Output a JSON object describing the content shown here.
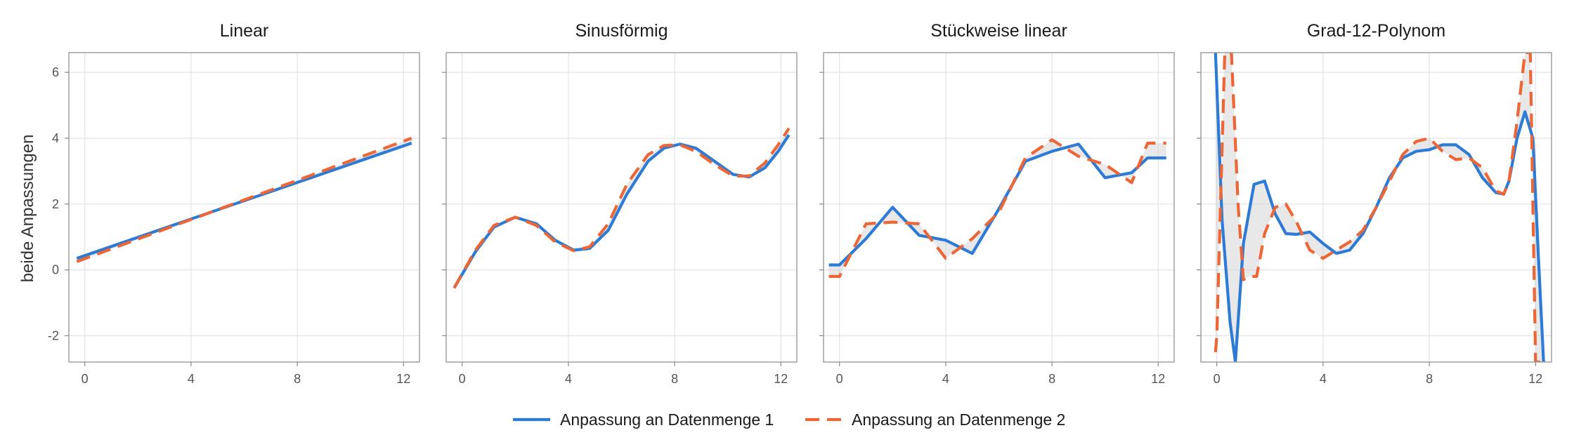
{
  "chart_data": {
    "type": "line",
    "ylabel": "beide Anpassungen",
    "xlim": [
      -0.6,
      12.6
    ],
    "ylim": [
      -2.8,
      6.6
    ],
    "x_ticks": [
      0,
      4,
      8,
      12
    ],
    "y_ticks": [
      -2,
      0,
      2,
      4,
      6
    ],
    "grid": true,
    "legend_position": "bottom",
    "series_styles": [
      {
        "name": "Anpassung an Datenmenge 1",
        "color": "#2d7bd5",
        "dash": "solid"
      },
      {
        "name": "Anpassung an Datenmenge 2",
        "color": "#ec6636",
        "dash": "dashed"
      }
    ],
    "band_color": "#cccccc",
    "panels": [
      {
        "title": "Linear",
        "series": [
          {
            "name": "Anpassung an Datenmenge 1",
            "x": [
              -0.3,
              12.3
            ],
            "y": [
              0.35,
              3.85
            ]
          },
          {
            "name": "Anpassung an Datenmenge 2",
            "x": [
              -0.3,
              12.3
            ],
            "y": [
              0.25,
              4.0
            ]
          }
        ]
      },
      {
        "title": "Sinusförmig",
        "series": [
          {
            "name": "Anpassung an Datenmenge 1",
            "x": [
              -0.3,
              0.5,
              1.2,
              2.0,
              2.8,
              3.5,
              4.2,
              4.8,
              5.5,
              6.2,
              7.0,
              7.6,
              8.2,
              8.8,
              9.5,
              10.2,
              10.8,
              11.4,
              11.9,
              12.3
            ],
            "y": [
              -0.55,
              0.55,
              1.3,
              1.6,
              1.4,
              0.9,
              0.6,
              0.65,
              1.2,
              2.3,
              3.3,
              3.7,
              3.82,
              3.7,
              3.3,
              2.9,
              2.82,
              3.1,
              3.6,
              4.1
            ]
          },
          {
            "name": "Anpassung an Datenmenge 2",
            "x": [
              -0.3,
              0.5,
              1.2,
              2.0,
              2.8,
              3.5,
              4.2,
              4.8,
              5.5,
              6.2,
              7.0,
              7.6,
              8.2,
              8.8,
              9.5,
              10.2,
              10.8,
              11.4,
              11.9,
              12.3
            ],
            "y": [
              -0.55,
              0.6,
              1.35,
              1.6,
              1.35,
              0.85,
              0.58,
              0.7,
              1.4,
              2.6,
              3.5,
              3.78,
              3.8,
              3.6,
              3.2,
              2.85,
              2.85,
              3.25,
              3.8,
              4.3
            ]
          }
        ]
      },
      {
        "title": "Stückweise linear",
        "series": [
          {
            "name": "Anpassung an Datenmenge 1",
            "x": [
              -0.4,
              0.0,
              1.0,
              2.0,
              3.0,
              4.0,
              5.0,
              6.0,
              7.0,
              8.0,
              9.0,
              10.0,
              11.0,
              11.6,
              12.3
            ],
            "y": [
              0.15,
              0.15,
              0.95,
              1.9,
              1.05,
              0.9,
              0.5,
              1.85,
              3.3,
              3.6,
              3.82,
              2.8,
              2.95,
              3.4,
              3.4
            ]
          },
          {
            "name": "Anpassung an Datenmenge 2",
            "x": [
              -0.4,
              0.0,
              1.0,
              2.0,
              3.0,
              4.0,
              5.0,
              6.0,
              7.0,
              8.0,
              9.0,
              10.0,
              11.0,
              11.6,
              12.3
            ],
            "y": [
              -0.2,
              -0.2,
              1.4,
              1.45,
              1.4,
              0.35,
              0.95,
              1.75,
              3.4,
              3.95,
              3.45,
              3.2,
              2.65,
              3.85,
              3.85
            ]
          }
        ]
      },
      {
        "title": "Grad-12-Polynom",
        "series": [
          {
            "name": "Anpassung an Datenmenge 1",
            "x": [
              -0.05,
              0.2,
              0.5,
              0.7,
              1.0,
              1.4,
              1.8,
              2.2,
              2.6,
              3.0,
              3.5,
              4.0,
              4.5,
              5.0,
              5.5,
              6.0,
              6.5,
              7.0,
              7.5,
              8.0,
              8.5,
              9.0,
              9.5,
              10.0,
              10.5,
              10.8,
              11.0,
              11.3,
              11.6,
              11.9,
              12.1,
              12.3,
              12.35
            ],
            "y": [
              6.6,
              1.5,
              -1.6,
              -2.8,
              0.8,
              2.6,
              2.7,
              1.7,
              1.1,
              1.08,
              1.15,
              0.8,
              0.5,
              0.6,
              1.1,
              1.9,
              2.8,
              3.4,
              3.6,
              3.65,
              3.8,
              3.8,
              3.5,
              2.8,
              2.35,
              2.3,
              2.7,
              4.0,
              4.8,
              4.0,
              0.5,
              -2.8,
              -2.8
            ]
          },
          {
            "name": "Anpassung an Datenmenge 2",
            "x": [
              -0.05,
              0.0,
              0.3,
              0.55,
              0.8,
              1.0,
              1.2,
              1.5,
              1.8,
              2.2,
              2.6,
              3.0,
              3.5,
              4.0,
              4.5,
              5.0,
              5.5,
              6.0,
              6.5,
              7.0,
              7.5,
              8.0,
              8.5,
              9.0,
              9.5,
              10.0,
              10.5,
              10.8,
              11.0,
              11.3,
              11.6,
              11.8,
              12.0,
              12.2
            ],
            "y": [
              -2.5,
              -2.0,
              6.6,
              6.6,
              2.0,
              -0.3,
              -0.2,
              -0.2,
              1.1,
              1.9,
              2.0,
              1.45,
              0.6,
              0.35,
              0.6,
              0.85,
              1.2,
              1.9,
              2.7,
              3.5,
              3.9,
              4.0,
              3.6,
              3.35,
              3.4,
              3.1,
              2.4,
              2.3,
              2.7,
              4.5,
              6.6,
              6.6,
              -2.8,
              -2.8
            ]
          }
        ]
      }
    ]
  }
}
